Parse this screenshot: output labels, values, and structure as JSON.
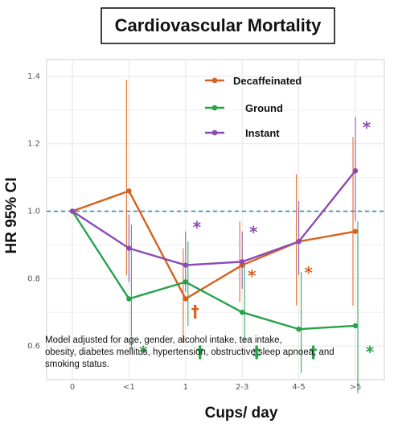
{
  "chart_data": {
    "type": "line",
    "title": "Cardiovascular Mortality",
    "xlabel": "Cups/ day",
    "ylabel": "HR 95% CI",
    "categories": [
      "0",
      "<1",
      "1",
      "2-3",
      "4-5",
      ">5"
    ],
    "yticks": [
      "0.6",
      "0.8",
      "1.0",
      "1.2",
      "1.4"
    ],
    "ylim": [
      0.5,
      1.45
    ],
    "reference_line": 1.0,
    "grid": true,
    "legend_position": "top-right",
    "series": [
      {
        "name": "Decaffeinated",
        "color": "#d9601e",
        "values": [
          1.0,
          1.06,
          0.74,
          0.84,
          0.91,
          0.94
        ],
        "ci_low": [
          1.0,
          0.81,
          0.61,
          0.73,
          0.72,
          0.72
        ],
        "ci_high": [
          1.0,
          1.39,
          0.89,
          0.97,
          1.11,
          1.22
        ]
      },
      {
        "name": "Ground",
        "color": "#26a24a",
        "values": [
          1.0,
          0.74,
          0.79,
          0.7,
          0.65,
          0.66
        ],
        "ci_low": [
          1.0,
          0.59,
          0.66,
          0.61,
          0.52,
          0.46
        ],
        "ci_high": [
          1.0,
          0.96,
          0.91,
          0.84,
          0.82,
          0.97
        ]
      },
      {
        "name": "Instant",
        "color": "#8a4bb5",
        "values": [
          1.0,
          0.89,
          0.84,
          0.85,
          0.91,
          1.12
        ],
        "ci_low": [
          1.0,
          0.79,
          0.76,
          0.77,
          0.81,
          0.97
        ],
        "ci_high": [
          1.0,
          0.99,
          0.94,
          0.94,
          1.03,
          1.28
        ]
      }
    ],
    "significance_markers": [
      {
        "series": "Instant",
        "category": "1",
        "symbol": "*",
        "y": 0.96
      },
      {
        "series": "Instant",
        "category": "2-3",
        "symbol": "*",
        "y": 0.945
      },
      {
        "series": "Instant",
        "category": ">5",
        "symbol": "*",
        "y": 1.255
      },
      {
        "series": "Decaffeinated",
        "category": "1",
        "symbol": "†",
        "y": 0.71
      },
      {
        "series": "Decaffeinated",
        "category": "2-3",
        "symbol": "*",
        "y": 0.815
      },
      {
        "series": "Decaffeinated",
        "category": "4-5",
        "symbol": "*",
        "y": 0.825
      },
      {
        "series": "Ground",
        "category": "<1",
        "symbol": "*",
        "y": 0.59
      },
      {
        "series": "Ground",
        "category": "1",
        "symbol": "†",
        "y": 0.59
      },
      {
        "series": "Ground",
        "category": "2-3",
        "symbol": "‡",
        "y": 0.59
      },
      {
        "series": "Ground",
        "category": "4-5",
        "symbol": "†",
        "y": 0.59
      },
      {
        "series": "Ground",
        "category": ">5",
        "symbol": "*",
        "y": 0.59
      }
    ],
    "footnote_lines": [
      "Model adjusted for age, gender, alcohol intake, tea intake,",
      "obesity, diabetes mellitus, hypertension, obstructive sleep apnoea, and",
      "smoking status."
    ]
  }
}
